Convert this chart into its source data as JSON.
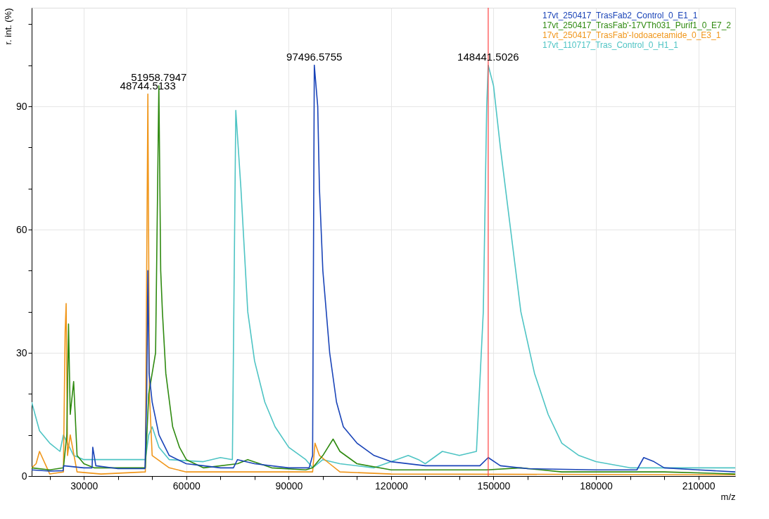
{
  "chart_data": {
    "type": "line",
    "xlabel": "m/z",
    "ylabel": "r. int. (%)",
    "xlim": [
      14700,
      220800
    ],
    "ylim": [
      0,
      114
    ],
    "xticks": [
      {
        "value": 20000,
        "label": null
      },
      30000,
      {
        "value": 40000,
        "label": null
      },
      {
        "value": 50000,
        "label": null
      },
      60000,
      {
        "value": 70000,
        "label": null
      },
      {
        "value": 80000,
        "label": null
      },
      90000,
      {
        "value": 100000,
        "label": null
      },
      {
        "value": 110000,
        "label": null
      },
      120000,
      {
        "value": 130000,
        "label": null
      },
      {
        "value": 140000,
        "label": null
      },
      150000,
      {
        "value": 160000,
        "label": null
      },
      {
        "value": 170000,
        "label": null
      },
      180000,
      {
        "value": 190000,
        "label": null
      },
      {
        "value": 200000,
        "label": null
      },
      210000
    ],
    "yticks": [
      0,
      {
        "value": 10,
        "label": null
      },
      {
        "value": 20,
        "label": null
      },
      30,
      {
        "value": 40,
        "label": null
      },
      {
        "value": 50,
        "label": null
      },
      60,
      {
        "value": 70,
        "label": null
      },
      {
        "value": 80,
        "label": null
      },
      90,
      {
        "value": 100,
        "label": null
      },
      {
        "value": 110,
        "label": null
      }
    ],
    "grid": true,
    "legend": "top right",
    "line_style": "solid",
    "series": [
      {
        "name": "17vt_250417_TrasFab2_Control_0_E1_1",
        "color": "#1a44b8",
        "x": [
          14700,
          20000,
          23900,
          24100,
          30000,
          32400,
          32600,
          33500,
          40000,
          47900,
          48400,
          48744.5133,
          49100,
          50000,
          52000,
          55000,
          60000,
          65000,
          70000,
          73800,
          75000,
          80000,
          90000,
          96000,
          97000,
          97496.5755,
          98500,
          99000,
          100000,
          102000,
          104000,
          106000,
          110000,
          115000,
          120000,
          130000,
          140000,
          146000,
          148441.5026,
          152000,
          160000,
          180000,
          192000,
          194000,
          197000,
          200000,
          210000,
          220800
        ],
        "values": [
          1.5,
          1.2,
          1.3,
          2.5,
          2,
          2,
          7,
          2.5,
          1.8,
          1.8,
          20,
          50,
          25,
          18,
          10,
          5,
          3,
          2.5,
          2,
          2,
          4,
          3,
          2,
          2,
          5,
          100,
          90,
          70,
          50,
          30,
          18,
          12,
          8,
          5,
          3.5,
          2.5,
          2.5,
          2.5,
          4.5,
          2.5,
          1.8,
          1.5,
          1.5,
          4.5,
          3.5,
          2,
          1.5,
          1
        ]
      },
      {
        "name": "17vt_250417_TrasFab'-17VTh031_Purif1_0_E7_2",
        "color": "#2f8a10",
        "x": [
          14700,
          20000,
          24000,
          25000,
          25500,
          26000,
          27000,
          28000,
          30000,
          33000,
          40000,
          48000,
          49000,
          50000,
          51000,
          51958.7947,
          52500,
          53000,
          54000,
          56000,
          58000,
          60000,
          65000,
          75000,
          78000,
          85000,
          95000,
          97000,
          100000,
          103000,
          105000,
          110000,
          120000,
          148000,
          158000,
          170000,
          195000,
          200000,
          220800
        ],
        "values": [
          2,
          1.5,
          2,
          10,
          37,
          15,
          23,
          5,
          3,
          2,
          2,
          2,
          20,
          25,
          30,
          95,
          50,
          40,
          25,
          12,
          7,
          4,
          2,
          3,
          4,
          2,
          1.5,
          2,
          5,
          9,
          6,
          3,
          1.5,
          1.5,
          2,
          1,
          1,
          1,
          0.5
        ]
      },
      {
        "name": "17vt_250417_TrasFab'-Iodoacetamide_0_E3_1",
        "color": "#f0961a",
        "x": [
          14700,
          16000,
          17000,
          20000,
          24000,
          24500,
          24800,
          25200,
          26000,
          28000,
          35000,
          48000,
          48744.5133,
          49200,
          50000,
          55000,
          60000,
          80000,
          97000,
          97700,
          99000,
          102000,
          105000,
          120000,
          220800
        ],
        "values": [
          2,
          3,
          6,
          0.5,
          1,
          35,
          42,
          5,
          10,
          1,
          0.5,
          1,
          93,
          20,
          5,
          2,
          1,
          1,
          1,
          8,
          5,
          3,
          1,
          0.5,
          0.3
        ]
      },
      {
        "name": "17vt_110717_Tras_Control_0_H1_1",
        "color": "#4ec4c4",
        "x": [
          14700,
          17000,
          20000,
          23000,
          24000,
          27000,
          30000,
          40000,
          48000,
          49000,
          50000,
          52000,
          55000,
          65000,
          70000,
          73500,
          74500,
          76000,
          78000,
          80000,
          83000,
          86000,
          90000,
          95000,
          97000,
          100000,
          105000,
          115000,
          125000,
          128000,
          130000,
          135000,
          140000,
          145000,
          147000,
          148000,
          148441.5026,
          150000,
          152000,
          155000,
          158000,
          162000,
          166000,
          170000,
          175000,
          180000,
          190000,
          200000,
          220800
        ],
        "values": [
          18,
          11,
          8,
          6,
          10,
          5,
          4,
          4,
          4,
          10,
          12,
          7,
          4,
          3.5,
          4.5,
          4,
          89,
          70,
          40,
          28,
          18,
          12,
          7,
          4,
          2,
          4,
          3,
          2,
          5,
          4,
          3,
          6,
          5,
          6,
          40,
          90,
          100,
          95,
          80,
          60,
          40,
          25,
          15,
          8,
          5,
          3.5,
          2,
          2,
          2
        ]
      }
    ],
    "ref_lines": [
      {
        "axis": "x",
        "value": 148441.5026,
        "color": "#ff4040"
      }
    ],
    "annotations": [
      {
        "text": "48744.5133",
        "x": 48744.5133,
        "y": 93
      },
      {
        "text": "51958.7947",
        "x": 51958.7947,
        "y": 95
      },
      {
        "text": "97496.5755",
        "x": 97496.5755,
        "y": 100
      },
      {
        "text": "148441.5026",
        "x": 148441.5026,
        "y": 100
      }
    ]
  }
}
